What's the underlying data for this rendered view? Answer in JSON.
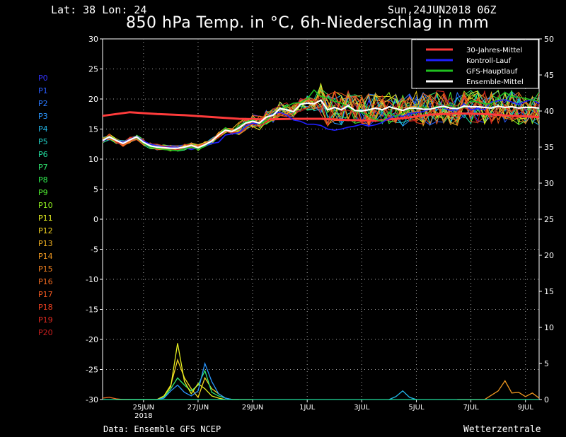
{
  "header": {
    "latlon": "Lat: 38 Lon: 24",
    "datestamp": "Sun,24JUN2018 06Z",
    "title": "850 hPa Temp. in °C, 6h-Niederschlag in mm"
  },
  "footer": {
    "source": "Data: Ensemble GFS NCEP",
    "brand": "Wetterzentrale"
  },
  "members": [
    {
      "label": "P0",
      "color": "#3232ff"
    },
    {
      "label": "P1",
      "color": "#2a5cff"
    },
    {
      "label": "P2",
      "color": "#2a78ff"
    },
    {
      "label": "P3",
      "color": "#2a96ff"
    },
    {
      "label": "P4",
      "color": "#22b4e6"
    },
    {
      "label": "P5",
      "color": "#22d2c8"
    },
    {
      "label": "P6",
      "color": "#22e0a0"
    },
    {
      "label": "P7",
      "color": "#30e870"
    },
    {
      "label": "P8",
      "color": "#30f050"
    },
    {
      "label": "P9",
      "color": "#50f030"
    },
    {
      "label": "P10",
      "color": "#90f020"
    },
    {
      "label": "P11",
      "color": "#e6f020"
    },
    {
      "label": "P12",
      "color": "#f0d020"
    },
    {
      "label": "P13",
      "color": "#f0b020"
    },
    {
      "label": "P14",
      "color": "#f09820"
    },
    {
      "label": "P15",
      "color": "#f08020"
    },
    {
      "label": "P16",
      "color": "#f06a20"
    },
    {
      "label": "P17",
      "color": "#f05820"
    },
    {
      "label": "P18",
      "color": "#f04020"
    },
    {
      "label": "P19",
      "color": "#e02a20"
    },
    {
      "label": "P20",
      "color": "#c81e1e"
    }
  ],
  "chart_data": {
    "type": "line",
    "ylim": [
      -30,
      30
    ],
    "y2lim": [
      0,
      50
    ],
    "yticks": [
      30,
      25,
      20,
      15,
      10,
      5,
      0,
      -5,
      -10,
      -15,
      -20,
      -25,
      -30
    ],
    "y2ticks": [
      50,
      45,
      40,
      35,
      30,
      25,
      20,
      15,
      10,
      5,
      0
    ],
    "xlim": [
      0,
      16
    ],
    "xticks": [
      {
        "x": 1.5,
        "label": "25JUN",
        "sub": "2018"
      },
      {
        "x": 3.5,
        "label": "27JUN"
      },
      {
        "x": 5.5,
        "label": "29JUN"
      },
      {
        "x": 7.5,
        "label": "1JUL"
      },
      {
        "x": 9.5,
        "label": "3JUL"
      },
      {
        "x": 11.5,
        "label": "5JUL"
      },
      {
        "x": 13.5,
        "label": "7JUL"
      },
      {
        "x": 15.5,
        "label": "9JUL"
      }
    ],
    "legend": {
      "position": "top-right",
      "entries": [
        {
          "name": "30-Jahres-Mittel",
          "color": "#ff3b3b"
        },
        {
          "name": "Kontroll-Lauf",
          "color": "#2020ff"
        },
        {
          "name": "GFS-Hauptlauf",
          "color": "#20c020"
        },
        {
          "name": "Ensemble-Mittel",
          "color": "#ffffff"
        }
      ]
    },
    "series": [
      {
        "name": "30-Jahres-Mittel",
        "color": "#ff3b3b",
        "x": [
          0,
          1,
          2,
          3,
          4,
          5,
          6,
          7,
          8,
          9,
          10,
          11,
          12,
          13,
          14,
          15,
          16
        ],
        "values": [
          17.2,
          17.8,
          17.5,
          17.3,
          17.0,
          16.7,
          16.6,
          16.7,
          16.7,
          16.5,
          16.4,
          16.8,
          17.4,
          17.6,
          17.5,
          17.2,
          17.0
        ]
      },
      {
        "name": "Kontroll-Lauf",
        "color": "#2020ff",
        "x": [
          0,
          0.25,
          0.5,
          0.75,
          1,
          1.25,
          1.5,
          1.75,
          2,
          2.25,
          2.5,
          2.75,
          3,
          3.25,
          3.5,
          3.75,
          4,
          4.25,
          4.5,
          4.75,
          5,
          5.25,
          5.5,
          5.75,
          6,
          6.25,
          6.5,
          6.75,
          7,
          7.25,
          7.5,
          7.75,
          8,
          8.25,
          8.5,
          8.75,
          9,
          9.25,
          9.5,
          9.75,
          10,
          10.25,
          10.5,
          10.75,
          11,
          11.25,
          11.5,
          11.75,
          12,
          12.25,
          12.5,
          12.75,
          13,
          13.25,
          13.5,
          13.75,
          14,
          14.25,
          14.5,
          14.75,
          15,
          15.25,
          15.5,
          15.75,
          16
        ],
        "values": [
          13,
          13.6,
          13.2,
          12.8,
          13.3,
          13.8,
          13,
          12.5,
          12.2,
          12,
          12,
          12,
          11.9,
          11.6,
          11.9,
          12.2,
          12.6,
          12.8,
          14,
          14.2,
          14.4,
          15.5,
          16,
          15.8,
          17,
          17.5,
          17.8,
          17.3,
          16.5,
          16.3,
          15.8,
          15.8,
          15.6,
          15,
          14.8,
          15,
          15.3,
          15.5,
          15.8,
          15.5,
          15.7,
          16.1,
          16.8,
          17.3,
          17.1,
          17.6,
          17.7,
          17.9,
          18.4,
          18.6,
          18.5,
          18.1,
          18.2,
          19.2,
          18.2,
          18.4,
          18.2,
          19.5,
          19.7,
          19.9,
          19.5,
          19.1,
          19.6,
          19.9,
          19.2
        ]
      },
      {
        "name": "GFS-Hauptlauf",
        "color": "#20c020",
        "x": [
          0,
          0.25,
          0.5,
          0.75,
          1,
          1.25,
          1.5,
          1.75,
          2,
          2.25,
          2.5,
          2.75,
          3,
          3.25,
          3.5,
          3.75,
          4,
          4.25,
          4.5,
          4.75,
          5,
          5.25,
          5.5,
          5.75,
          6,
          6.25,
          6.5,
          6.75,
          7,
          7.25,
          7.5,
          7.75,
          8,
          8.25,
          8.5,
          8.75,
          9,
          9.25,
          9.5,
          9.75,
          10,
          10.25,
          10.5,
          10.75,
          11,
          11.25,
          11.5,
          11.75,
          12,
          12.25,
          12.5,
          12.75,
          13,
          13.25,
          13.5,
          13.75,
          14,
          14.25,
          14.5,
          14.75,
          15,
          15.25,
          15.5,
          15.75,
          16
        ],
        "values": [
          13.2,
          13.8,
          13.2,
          12.6,
          13.2,
          13.6,
          12.6,
          12,
          11.8,
          11.6,
          11.5,
          11.4,
          11.7,
          12,
          11.6,
          12.2,
          13,
          14,
          15.2,
          14.6,
          15.6,
          16.2,
          16.5,
          15.8,
          16.5,
          17.4,
          18.4,
          18.8,
          19.3,
          19.4,
          20,
          21.5,
          20.4,
          20.2,
          19.6,
          19.3,
          18.6,
          18,
          17.8,
          17.2,
          16.6,
          16.3,
          17.8,
          17.1,
          17.6,
          18.4,
          18.4,
          18.7,
          18.3,
          18.8,
          18.5,
          19,
          18.4,
          18.6,
          19.7,
          19.5,
          19.2,
          19.2,
          20.2,
          21.1,
          20.4,
          20.3,
          20.1,
          19.8,
          19.7
        ]
      },
      {
        "name": "Ensemble-Mittel",
        "color": "#ffffff",
        "x": [
          0,
          0.25,
          0.5,
          0.75,
          1,
          1.25,
          1.5,
          1.75,
          2,
          2.25,
          2.5,
          2.75,
          3,
          3.25,
          3.5,
          3.75,
          4,
          4.25,
          4.5,
          4.75,
          5,
          5.25,
          5.5,
          5.75,
          6,
          6.25,
          6.5,
          6.75,
          7,
          7.25,
          7.5,
          7.75,
          8,
          8.25,
          8.5,
          8.75,
          9,
          9.25,
          9.5,
          9.75,
          10,
          10.25,
          10.5,
          10.75,
          11,
          11.25,
          11.5,
          11.75,
          12,
          12.25,
          12.5,
          12.75,
          13,
          13.25,
          13.5,
          13.75,
          14,
          14.25,
          14.5,
          14.75,
          15,
          15.25,
          15.5,
          15.75,
          16
        ],
        "values": [
          13.1,
          13.7,
          13.1,
          12.6,
          13.2,
          13.7,
          12.8,
          12.2,
          12,
          11.9,
          11.8,
          11.8,
          12,
          12.3,
          11.9,
          12.4,
          13,
          14,
          14.8,
          14.6,
          15.2,
          16,
          16.3,
          16,
          17,
          17.3,
          18.4,
          18.2,
          17.9,
          19.1,
          19.3,
          19.2,
          19.8,
          18.2,
          18.6,
          18.2,
          18.9,
          18.1,
          18,
          18.2,
          18.5,
          18.2,
          18.7,
          18.4,
          18.1,
          18.5,
          18.5,
          18.3,
          18.3,
          18.6,
          18.8,
          18.5,
          18.4,
          18.8,
          18.7,
          18.7,
          18.6,
          18.5,
          18.8,
          18.6,
          18.7,
          18.5,
          18.6,
          18.6,
          18.5
        ]
      }
    ],
    "precip_series": [
      {
        "color": "#f0d020",
        "x": [
          0.5,
          1,
          1.5,
          2,
          2.25,
          2.5,
          2.75,
          3,
          3.25,
          3.5,
          3.75,
          4,
          4.25,
          4.5,
          4.75,
          5,
          5.25,
          5.5
        ],
        "values": [
          0,
          0,
          0,
          0,
          0.5,
          2,
          5.5,
          3,
          1.5,
          0.3,
          3,
          1.5,
          0.8,
          0.2,
          0,
          0,
          0,
          0
        ]
      },
      {
        "color": "#30e870",
        "x": [
          0.5,
          1,
          1.5,
          2,
          2.25,
          2.5,
          2.75,
          3,
          3.25,
          3.5,
          3.75,
          4,
          4.25,
          4.5,
          4.75,
          5
        ],
        "values": [
          0,
          0,
          0,
          0,
          0.3,
          1.5,
          3,
          2,
          1.2,
          2,
          4,
          1,
          0.5,
          0.2,
          0,
          0
        ]
      },
      {
        "color": "#e6f020",
        "x": [
          2,
          2.25,
          2.5,
          2.75,
          3,
          3.25,
          3.5,
          3.75,
          4,
          4.25,
          4.5
        ],
        "values": [
          0,
          0.5,
          1.8,
          7.8,
          2.5,
          0.8,
          2.2,
          1.5,
          0.5,
          0.2,
          0
        ]
      },
      {
        "color": "#2a96ff",
        "x": [
          2,
          2.25,
          2.5,
          2.75,
          3,
          3.25,
          3.5,
          3.75,
          4,
          4.25,
          4.5,
          4.75
        ],
        "values": [
          0,
          0.2,
          1.2,
          2,
          1,
          0.5,
          1.2,
          5,
          2.5,
          0.8,
          0.2,
          0
        ]
      },
      {
        "color": "#f06a20",
        "x": [
          0,
          0.25,
          0.5,
          0.75,
          1
        ],
        "values": [
          0.2,
          0.3,
          0.1,
          0,
          0
        ]
      },
      {
        "color": "#f09820",
        "x": [
          13,
          13.5,
          14,
          14.25,
          14.5,
          14.75,
          15,
          15.25,
          15.5,
          15.75,
          16
        ],
        "values": [
          0,
          0,
          0,
          0.6,
          1.2,
          2.6,
          0.9,
          1,
          0.4,
          0.9,
          0.2
        ]
      },
      {
        "color": "#22b4e6",
        "x": [
          10.5,
          10.75,
          11,
          11.25,
          11.5
        ],
        "values": [
          0,
          0.4,
          1.2,
          0.3,
          0
        ]
      },
      {
        "color": "#22e0a0",
        "x": [
          0,
          16
        ],
        "values": [
          0,
          0
        ]
      }
    ]
  }
}
